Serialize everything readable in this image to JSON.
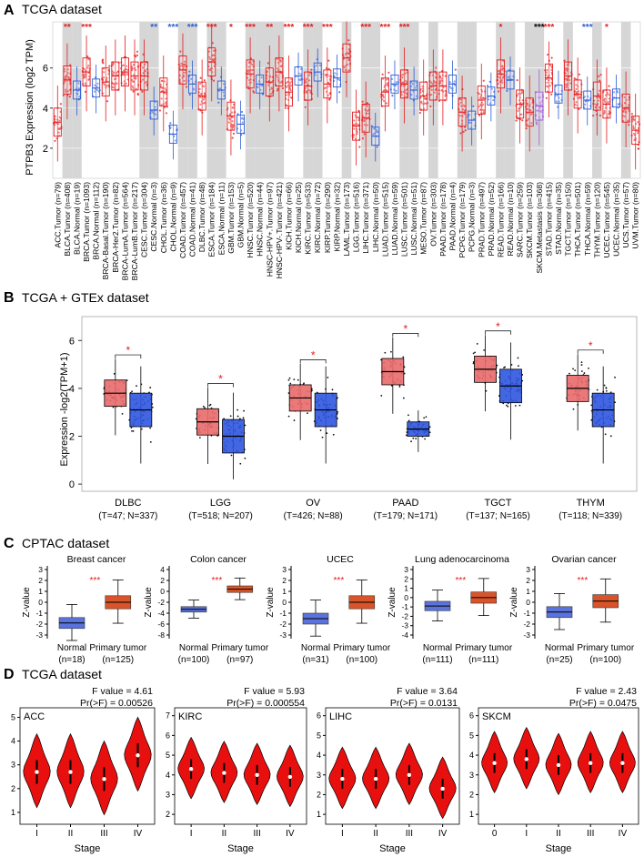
{
  "colors": {
    "red": "#e41a1c",
    "blue": "#2b5bd7",
    "purple": "#a05ad6",
    "gray": "#d6d6d6",
    "tumor_fill": "#e96a6a",
    "normal_fill": "#2f57e0",
    "cptac_normal": "#5b73dc",
    "cptac_tumor": "#d9542a",
    "violin": "#e8100f"
  },
  "panel_a": {
    "letter": "A",
    "title": "TCGA dataset",
    "ylabel": "PTPB3 Expression  (log2 TPM)",
    "yticks": [
      "2",
      "4",
      "6"
    ],
    "categories": [
      {
        "label": "ACC.Tumor (n=79)",
        "type": "tumor",
        "sig": ""
      },
      {
        "label": "BLCA.Tumor (n=408)",
        "type": "tumor",
        "sig": "**"
      },
      {
        "label": "BLCA.Normal (n=19)",
        "type": "normal",
        "sig": ""
      },
      {
        "label": "BRCA.Tumor (n=1093)",
        "type": "tumor",
        "sig": "***"
      },
      {
        "label": "BRCA.Normal (n=112)",
        "type": "normal",
        "sig": ""
      },
      {
        "label": "BRCA-Basal.Tumor (n=190)",
        "type": "tumor",
        "sig": ""
      },
      {
        "label": "BRCA-Her2.Tumor (n=82)",
        "type": "tumor",
        "sig": ""
      },
      {
        "label": "BRCA-LumA.Tumor (n=564)",
        "type": "tumor",
        "sig": ""
      },
      {
        "label": "BRCA-LumB.Tumor (n=217)",
        "type": "tumor",
        "sig": ""
      },
      {
        "label": "CESC.Tumor (n=304)",
        "type": "tumor",
        "sig": ""
      },
      {
        "label": "CESC.Normal (n=3)",
        "type": "normal",
        "sig": "**"
      },
      {
        "label": "CHOL.Tumor (n=36)",
        "type": "tumor",
        "sig": ""
      },
      {
        "label": "CHOL.Normal (n=9)",
        "type": "normal",
        "sig": "***"
      },
      {
        "label": "COAD.Tumor (n=457)",
        "type": "tumor",
        "sig": ""
      },
      {
        "label": "COAD.Normal (n=41)",
        "type": "normal",
        "sig": "***"
      },
      {
        "label": "DLBC.Tumor (n=48)",
        "type": "tumor",
        "sig": ""
      },
      {
        "label": "ESCA.Tumor (n=184)",
        "type": "tumor",
        "sig": "***"
      },
      {
        "label": "ESCA.Normal (n=11)",
        "type": "normal",
        "sig": ""
      },
      {
        "label": "GBM.Tumor (n=153)",
        "type": "tumor",
        "sig": "*"
      },
      {
        "label": "GBM.Normal (n=5)",
        "type": "normal",
        "sig": ""
      },
      {
        "label": "HNSC.Tumor (n=520)",
        "type": "tumor",
        "sig": "***"
      },
      {
        "label": "HNSC.Normal (n=44)",
        "type": "normal",
        "sig": ""
      },
      {
        "label": "HNSC-HPV+.Tumor (n=97)",
        "type": "tumor",
        "sig": "**"
      },
      {
        "label": "HNSC-HPV-.Tumor (n=421)",
        "type": "tumor",
        "sig": ""
      },
      {
        "label": "KICH.Tumor (n=66)",
        "type": "tumor",
        "sig": "***"
      },
      {
        "label": "KICH.Normal (n=25)",
        "type": "normal",
        "sig": ""
      },
      {
        "label": "KIRC.Tumor (n=533)",
        "type": "tumor",
        "sig": "***"
      },
      {
        "label": "KIRC.Normal (n=72)",
        "type": "normal",
        "sig": ""
      },
      {
        "label": "KIRP.Tumor (n=290)",
        "type": "tumor",
        "sig": "***"
      },
      {
        "label": "KIRP.Normal (n=32)",
        "type": "normal",
        "sig": ""
      },
      {
        "label": "LAML.Tumor (n=173)",
        "type": "tumor",
        "sig": ""
      },
      {
        "label": "LGG.Tumor (n=516)",
        "type": "tumor",
        "sig": ""
      },
      {
        "label": "LIHC.Tumor (n=371)",
        "type": "tumor",
        "sig": "***"
      },
      {
        "label": "LIHC.Normal (n=50)",
        "type": "normal",
        "sig": ""
      },
      {
        "label": "LUAD.Tumor (n=515)",
        "type": "tumor",
        "sig": "***"
      },
      {
        "label": "LUAD.Normal (n=59)",
        "type": "normal",
        "sig": ""
      },
      {
        "label": "LUSC.Tumor (n=501)",
        "type": "tumor",
        "sig": "***"
      },
      {
        "label": "LUSC.Normal (n=51)",
        "type": "normal",
        "sig": ""
      },
      {
        "label": "MESO.Tumor (n=87)",
        "type": "tumor",
        "sig": ""
      },
      {
        "label": "OV.Tumor (n=303)",
        "type": "tumor",
        "sig": ""
      },
      {
        "label": "PAAD.Tumor (n=178)",
        "type": "tumor",
        "sig": ""
      },
      {
        "label": "PAAD.Normal (n=4)",
        "type": "normal",
        "sig": ""
      },
      {
        "label": "PCPG.Tumor (n=179)",
        "type": "tumor",
        "sig": ""
      },
      {
        "label": "PCPG.Normal (n=3)",
        "type": "normal",
        "sig": ""
      },
      {
        "label": "PRAD.Tumor (n=497)",
        "type": "tumor",
        "sig": ""
      },
      {
        "label": "PRAD.Normal (n=52)",
        "type": "normal",
        "sig": ""
      },
      {
        "label": "READ.Tumor (n=166)",
        "type": "tumor",
        "sig": "*"
      },
      {
        "label": "READ.Normal (n=10)",
        "type": "normal",
        "sig": ""
      },
      {
        "label": "SARC.Tumor (n=259)",
        "type": "tumor",
        "sig": ""
      },
      {
        "label": "SKCM.Tumor (n=103)",
        "type": "tumor",
        "sig": ""
      },
      {
        "label": "SKCM.Metastasis (n=368)",
        "type": "meta",
        "sig": "***"
      },
      {
        "label": "STAD.Tumor (n=415)",
        "type": "tumor",
        "sig": "***"
      },
      {
        "label": "STAD.Normal (n=35)",
        "type": "normal",
        "sig": ""
      },
      {
        "label": "TGCT.Tumor (n=150)",
        "type": "tumor",
        "sig": ""
      },
      {
        "label": "THCA.Tumor (n=501)",
        "type": "tumor",
        "sig": ""
      },
      {
        "label": "THCA.Normal (n=59)",
        "type": "normal",
        "sig": "***"
      },
      {
        "label": "THYM.Tumor (n=120)",
        "type": "tumor",
        "sig": ""
      },
      {
        "label": "UCEC.Tumor (n=545)",
        "type": "tumor",
        "sig": "*"
      },
      {
        "label": "UCEC.Normal (n=35)",
        "type": "normal",
        "sig": ""
      },
      {
        "label": "UCS.Tumor (n=57)",
        "type": "tumor",
        "sig": ""
      },
      {
        "label": "UVM.Tumor (n=80)",
        "type": "tumor",
        "sig": ""
      }
    ]
  },
  "panel_b": {
    "letter": "B",
    "title": "TCGA + GTEx dataset",
    "ylabel": "Expression -log2(TPM+1)",
    "yticks": [
      "0",
      "2",
      "4",
      "6"
    ],
    "groups": [
      {
        "name": "DLBC",
        "n": "(T=47; N=337)"
      },
      {
        "name": "LGG",
        "n": "(T=518; N=207)"
      },
      {
        "name": "OV",
        "n": "(T=426; N=88)"
      },
      {
        "name": "PAAD",
        "n": "(T=179; N=171)"
      },
      {
        "name": "TGCT",
        "n": "(T=137; N=165)"
      },
      {
        "name": "THYM",
        "n": "(T=118; N=339)"
      }
    ],
    "sig": "*"
  },
  "panel_c": {
    "letter": "C",
    "title": "CPTAC dataset",
    "ylabel": "Z-value",
    "sig": "***",
    "normal_label": "Normal",
    "tumor_label": "Primary tumor",
    "charts": [
      {
        "title": "Breast cancer",
        "n_normal": "(n=18)",
        "n_tumor": "(n=125)",
        "yticks": [
          "3",
          "2",
          "1",
          "0",
          "-1",
          "-2",
          "-3"
        ]
      },
      {
        "title": "Colon cancer",
        "n_normal": "(n=100)",
        "n_tumor": "(n=97)",
        "yticks": [
          "4",
          "2",
          "0",
          "-2",
          "-4",
          "-6",
          "-8"
        ]
      },
      {
        "title": "UCEC",
        "n_normal": "(n=31)",
        "n_tumor": "(n=100)",
        "yticks": [
          "3",
          "2",
          "1",
          "0",
          "-1",
          "-2",
          "-3"
        ]
      },
      {
        "title": "Lung adenocarcinoma",
        "n_normal": "(n=111)",
        "n_tumor": "(n=111)",
        "yticks": [
          "3",
          "2",
          "1",
          "0",
          "-1",
          "-2",
          "-3",
          "-4"
        ]
      },
      {
        "title": "Ovarian cancer",
        "n_normal": "(n=25)",
        "n_tumor": "(n=100)",
        "yticks": [
          "3",
          "2",
          "1",
          "0",
          "-1",
          "-2",
          "-3"
        ]
      }
    ]
  },
  "panel_d": {
    "letter": "D",
    "title": "TCGA dataset",
    "xlabel": "Stage",
    "charts": [
      {
        "name": "ACC",
        "fvalue": "F value = 4.61",
        "pr": "Pr(>F) = 0.00526",
        "stages": [
          "I",
          "II",
          "III",
          "IV"
        ],
        "yticks": [
          "1",
          "2",
          "3",
          "4",
          "5"
        ]
      },
      {
        "name": "KIRC",
        "fvalue": "F value = 5.93",
        "pr": "Pr(>F) = 0.000554",
        "stages": [
          "I",
          "II",
          "III",
          "IV"
        ],
        "yticks": [
          "2",
          "3",
          "4",
          "5",
          "6",
          "7"
        ]
      },
      {
        "name": "LIHC",
        "fvalue": "F value = 3.64",
        "pr": "Pr(>F) = 0.0131",
        "stages": [
          "I",
          "II",
          "III",
          "IV"
        ],
        "yticks": [
          "1",
          "2",
          "3",
          "4",
          "5",
          "6"
        ]
      },
      {
        "name": "SKCM",
        "fvalue": "F value = 2.43",
        "pr": "Pr(>F) = 0.0475",
        "stages": [
          "0",
          "I",
          "II",
          "III",
          "IV"
        ],
        "yticks": [
          "1",
          "2",
          "3",
          "4",
          "5",
          "6"
        ]
      }
    ]
  },
  "chart_data": [
    {
      "type": "box",
      "title": "TCGA dataset",
      "ylabel": "PTPB3 Expression  (log2 TPM)",
      "ylim": [
        0,
        8
      ],
      "categories": [
        "ACC.Tumor",
        "BLCA.Tumor",
        "BLCA.Normal",
        "BRCA.Tumor",
        "BRCA.Normal",
        "BRCA-Basal.Tumor",
        "BRCA-Her2.Tumor",
        "BRCA-LumA.Tumor",
        "BRCA-LumB.Tumor",
        "CESC.Tumor",
        "CESC.Normal",
        "CHOL.Tumor",
        "CHOL.Normal",
        "COAD.Tumor",
        "COAD.Normal",
        "DLBC.Tumor",
        "ESCA.Tumor",
        "ESCA.Normal",
        "GBM.Tumor",
        "GBM.Normal",
        "HNSC.Tumor",
        "HNSC.Normal",
        "HNSC-HPV+.Tumor",
        "HNSC-HPV-.Tumor",
        "KICH.Tumor",
        "KICH.Normal",
        "KIRC.Tumor",
        "KIRC.Normal",
        "KIRP.Tumor",
        "KIRP.Normal",
        "LAML.Tumor",
        "LGG.Tumor",
        "LIHC.Tumor",
        "LIHC.Normal",
        "LUAD.Tumor",
        "LUAD.Normal",
        "LUSC.Tumor",
        "LUSC.Normal",
        "MESO.Tumor",
        "OV.Tumor",
        "PAAD.Tumor",
        "PAAD.Normal",
        "PCPG.Tumor",
        "PCPG.Normal",
        "PRAD.Tumor",
        "PRAD.Normal",
        "READ.Tumor",
        "READ.Normal",
        "SARC.Tumor",
        "SKCM.Tumor",
        "SKCM.Metastasis",
        "STAD.Tumor",
        "STAD.Normal",
        "TGCT.Tumor",
        "THCA.Tumor",
        "THCA.Normal",
        "THYM.Tumor",
        "UCEC.Tumor",
        "UCEC.Normal",
        "UCS.Tumor",
        "UVM.Tumor"
      ],
      "medians": [
        3.3,
        5.4,
        4.9,
        5.8,
        5.0,
        5.3,
        5.6,
        5.8,
        5.6,
        5.6,
        3.9,
        4.8,
        2.7,
        5.9,
        5.2,
        4.6,
        6.3,
        4.9,
        3.6,
        3.2,
        5.7,
        5.2,
        5.3,
        5.8,
        4.8,
        5.6,
        5.1,
        5.8,
        5.2,
        5.5,
        6.5,
        3.1,
        3.5,
        2.6,
        4.8,
        5.2,
        5.2,
        4.9,
        4.6,
        5.1,
        5.1,
        5.2,
        3.8,
        3.4,
        4.4,
        4.6,
        5.7,
        5.4,
        4.2,
        3.8,
        4.1,
        5.5,
        4.7,
        5.6,
        4.7,
        4.4,
        4.6,
        4.2,
        4.5,
        4.0,
        2.9
      ]
    },
    {
      "type": "box",
      "title": "TCGA + GTEx dataset",
      "ylabel": "Expression -log2(TPM+1)",
      "ylim": [
        0,
        7
      ],
      "categories": [
        "DLBC",
        "LGG",
        "OV",
        "PAAD",
        "TGCT",
        "THYM"
      ],
      "series": [
        {
          "name": "Tumor",
          "medians": [
            3.8,
            2.6,
            3.6,
            4.7,
            4.8,
            4.0
          ]
        },
        {
          "name": "Normal",
          "medians": [
            3.1,
            2.0,
            3.1,
            2.3,
            4.1,
            3.1
          ]
        }
      ]
    },
    {
      "type": "box",
      "title": "CPTAC dataset",
      "ylabel": "Z-value",
      "categories": [
        "Breast cancer",
        "Colon cancer",
        "UCEC",
        "Lung adenocarcinoma",
        "Ovarian cancer"
      ],
      "series": [
        {
          "name": "Normal",
          "medians": [
            -1.9,
            -3.3,
            -1.5,
            -0.9,
            -0.9
          ]
        },
        {
          "name": "Primary tumor",
          "medians": [
            0.0,
            0.4,
            0.0,
            0.0,
            0.1
          ]
        }
      ]
    },
    {
      "type": "violin",
      "title": "TCGA dataset",
      "xlabel": "Stage",
      "series": [
        {
          "name": "ACC",
          "stages": [
            "I",
            "II",
            "III",
            "IV"
          ],
          "medians": [
            2.7,
            2.7,
            2.4,
            3.4
          ]
        },
        {
          "name": "KIRC",
          "stages": [
            "I",
            "II",
            "III",
            "IV"
          ],
          "medians": [
            4.3,
            4.1,
            4.0,
            3.9
          ]
        },
        {
          "name": "LIHC",
          "stages": [
            "I",
            "II",
            "III",
            "IV"
          ],
          "medians": [
            2.8,
            2.8,
            3.0,
            2.3
          ]
        },
        {
          "name": "SKCM",
          "stages": [
            "0",
            "I",
            "II",
            "III",
            "IV"
          ],
          "medians": [
            3.6,
            3.8,
            3.5,
            3.6,
            3.6
          ]
        }
      ]
    }
  ]
}
